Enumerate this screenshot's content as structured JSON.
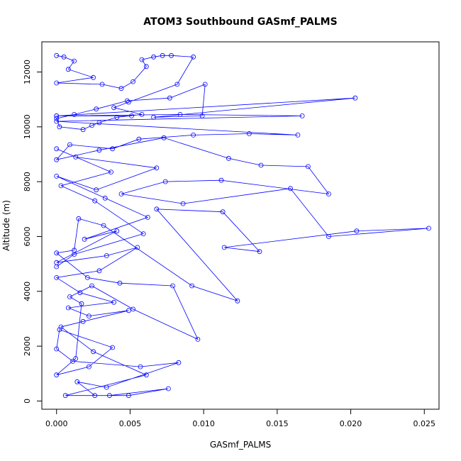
{
  "chart_data": {
    "type": "line",
    "title": "ATOM3 Southbound GASmf_PALMS",
    "xlabel": "GASmf_PALMS",
    "ylabel": "Altitude (m)",
    "xlim": [
      -0.001,
      0.026
    ],
    "ylim": [
      -300,
      13100
    ],
    "x_ticks": [
      "0.000",
      "0.005",
      "0.010",
      "0.015",
      "0.020",
      "0.025"
    ],
    "y_ticks": [
      "0",
      "2000",
      "4000",
      "6000",
      "8000",
      "10000",
      "12000"
    ],
    "grid": false,
    "legend": "none",
    "series_color": "#0000ff",
    "x": [
      0.0,
      0.0005,
      0.0012,
      0.0008,
      0.0025,
      0.0,
      0.0031,
      0.0044,
      0.0052,
      0.0061,
      0.0058,
      0.0066,
      0.0072,
      0.0078,
      0.0093,
      0.0082,
      0.0049,
      0.0039,
      0.0058,
      0.0041,
      0.0029,
      0.0024,
      0.0018,
      0.0002,
      0.0,
      0.0012,
      0.0027,
      0.0048,
      0.0077,
      0.0101,
      0.0099,
      0.0066,
      0.0203,
      0.0,
      0.0051,
      0.0,
      0.0084,
      0.0167,
      0.0,
      0.0164,
      0.0131,
      0.0093,
      0.0056,
      0.0038,
      0.0009,
      0.0,
      0.0029,
      0.0073,
      0.0117,
      0.0139,
      0.0171,
      0.0185,
      0.0112,
      0.0074,
      0.0044,
      0.0086,
      0.0159,
      0.0185,
      0.0253,
      0.0204,
      0.0114,
      0.0138,
      0.0113,
      0.0068,
      0.0123,
      0.0092,
      0.0032,
      0.0015,
      0.0012,
      0.0,
      0.0021,
      0.0043,
      0.0079,
      0.0096,
      0.0052,
      0.0024,
      0.0009,
      0.0017,
      0.0013,
      0.0,
      0.0022,
      0.0038,
      0.0002,
      0.0,
      0.0011,
      0.0057,
      0.0083,
      0.0034,
      0.0014,
      0.0026,
      0.0049,
      0.0076,
      0.0036,
      0.0006,
      0.0061,
      0.0025,
      0.0003,
      0.0018,
      0.0049,
      0.0022,
      0.0008,
      0.0039,
      0.0016,
      0.0,
      0.0029,
      0.0055,
      0.0034,
      0.0,
      0.0041,
      0.0019,
      0.0062,
      0.0033,
      0.0,
      0.0027,
      0.0068,
      0.0013,
      0.0,
      0.0037,
      0.0003,
      0.0026,
      0.0059,
      0.0012,
      0.0
    ],
    "y": [
      12600,
      12550,
      12400,
      12100,
      11800,
      11600,
      11550,
      11400,
      11650,
      12200,
      12450,
      12550,
      12600,
      12600,
      12550,
      11550,
      10900,
      10700,
      10450,
      10350,
      10150,
      10050,
      9900,
      10000,
      10300,
      10450,
      10650,
      10950,
      11050,
      11550,
      10400,
      10350,
      11050,
      10400,
      10400,
      10400,
      10450,
      10400,
      10200,
      9700,
      9750,
      9700,
      9550,
      9200,
      9350,
      8800,
      9150,
      9600,
      8850,
      8600,
      8550,
      7550,
      8050,
      8000,
      7550,
      7200,
      7750,
      6000,
      6300,
      6200,
      5600,
      5450,
      6900,
      7000,
      3650,
      4200,
      6400,
      6650,
      5500,
      5400,
      4500,
      4300,
      4200,
      2250,
      3350,
      4200,
      3800,
      3550,
      1550,
      950,
      1250,
      1950,
      2600,
      1900,
      1450,
      1250,
      1400,
      500,
      700,
      200,
      200,
      450,
      200,
      200,
      950,
      1800,
      2700,
      2900,
      3300,
      3100,
      3400,
      3600,
      3950,
      4500,
      4750,
      5600,
      5300,
      5050,
      6200,
      5900,
      6700,
      7400,
      8200,
      7700,
      8500,
      8900,
      9200,
      8350,
      7850,
      7300,
      6100,
      5350,
      4900
    ]
  }
}
